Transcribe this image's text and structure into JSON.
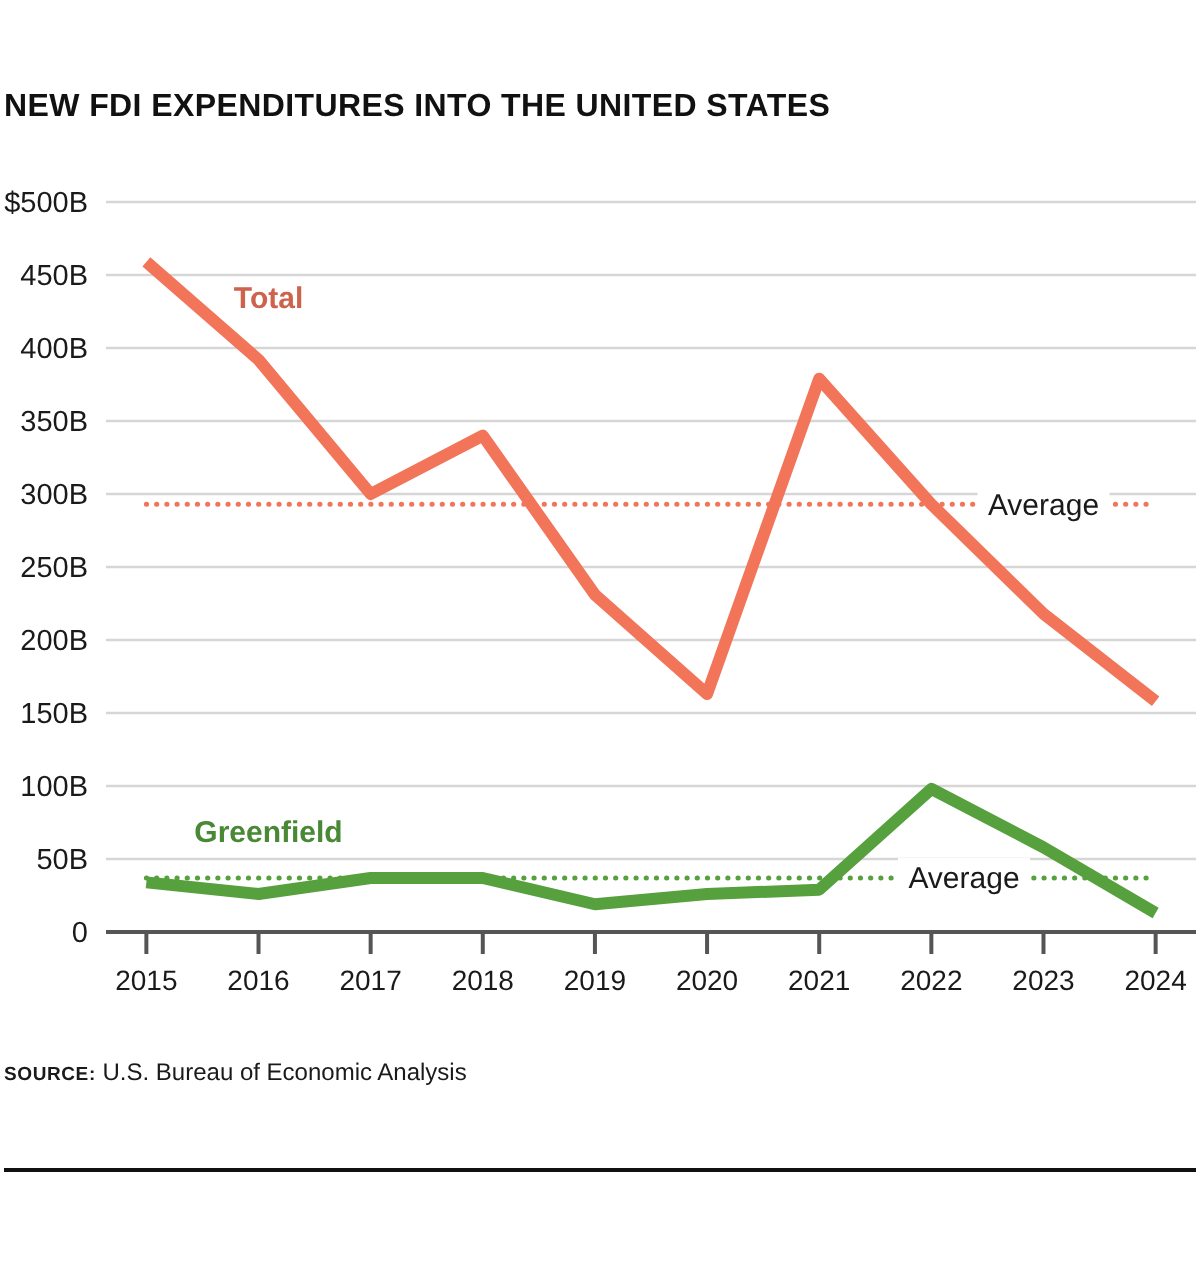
{
  "chart_data": {
    "type": "line",
    "title": "NEW FDI EXPENDITURES INTO THE UNITED STATES",
    "categories": [
      "2015",
      "2016",
      "2017",
      "2018",
      "2019",
      "2020",
      "2021",
      "2022",
      "2023",
      "2024"
    ],
    "series": [
      {
        "name": "Total",
        "color": "#f2755a",
        "values": [
          459,
          392,
          300,
          340,
          231,
          163,
          379,
          293,
          218,
          158
        ]
      },
      {
        "name": "Greenfield",
        "color": "#56a03d",
        "values": [
          34,
          26,
          37,
          37,
          19,
          26,
          29,
          98,
          58,
          13
        ]
      }
    ],
    "ylim": [
      0,
      500
    ],
    "yticks": [
      0,
      {
        "value": 50,
        "label": "50B"
      },
      {
        "value": 100,
        "label": "100B"
      },
      {
        "value": 150,
        "label": "150B"
      },
      {
        "value": 200,
        "label": "200B"
      },
      {
        "value": 250,
        "label": "250B"
      },
      {
        "value": 300,
        "label": "300B"
      },
      {
        "value": 350,
        "label": "350B"
      },
      {
        "value": 400,
        "label": "400B"
      },
      {
        "value": 450,
        "label": "450B"
      },
      {
        "value": 500,
        "label": "$500B"
      }
    ],
    "grid": "y",
    "ref_lines": [
      {
        "axis": "y",
        "value": 293,
        "label": "Average",
        "color": "#f2755a",
        "line_style": "dotted"
      },
      {
        "axis": "y",
        "value": 37,
        "label": "Average",
        "color": "#56a03d",
        "line_style": "dotted"
      }
    ],
    "annotations": [
      "SOURCE: U.S. Bureau of Economic Analysis"
    ]
  }
}
